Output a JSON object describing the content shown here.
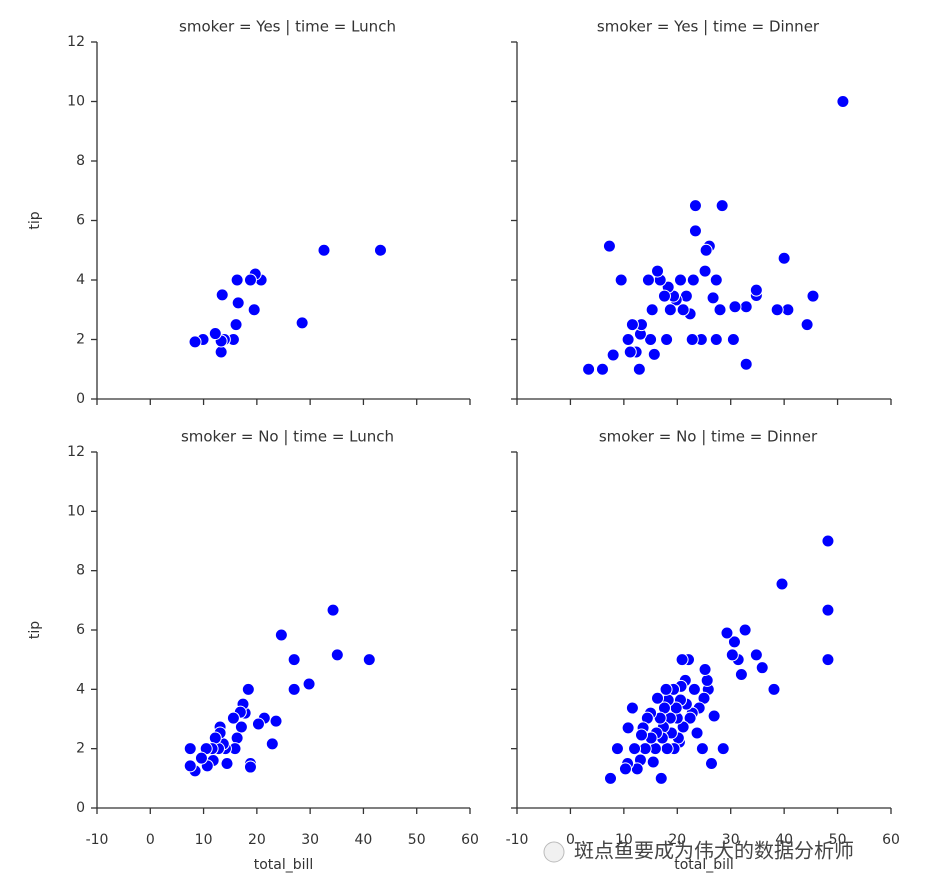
{
  "chart_data": [
    {
      "type": "scatter",
      "title": "smoker = Yes | time = Lunch",
      "ylabel": "tip",
      "color": "#0000ff",
      "edgecolor": "#ffffff",
      "xlim": [
        -10,
        60
      ],
      "ylim": [
        0,
        12
      ],
      "xticks": [
        -10,
        0,
        10,
        20,
        30,
        40,
        50,
        60
      ],
      "yticks": [
        0,
        2,
        4,
        6,
        8,
        10,
        12
      ],
      "x": [
        8.4,
        9.9,
        12.2,
        13.3,
        13.5,
        13.3,
        13.9,
        15.6,
        16.1,
        16.3,
        16.5,
        18.8,
        19.7,
        19.5,
        20.8,
        28.5,
        32.6,
        43.2
      ],
      "y": [
        1.92,
        2.0,
        2.2,
        1.95,
        3.5,
        1.58,
        2.0,
        2.0,
        2.5,
        4.0,
        3.23,
        4.0,
        4.2,
        3.0,
        4.0,
        2.56,
        5.0,
        5.0
      ]
    },
    {
      "type": "scatter",
      "title": "smoker = Yes | time = Dinner",
      "color": "#0000ff",
      "edgecolor": "#ffffff",
      "xlim": [
        -10,
        60
      ],
      "ylim": [
        0,
        12
      ],
      "xticks": [
        -10,
        0,
        10,
        20,
        30,
        40,
        50,
        60
      ],
      "yticks": [
        0,
        2,
        4,
        6,
        8,
        10,
        12
      ],
      "x": [
        3.4,
        6.0,
        7.3,
        8.0,
        9.5,
        10.8,
        11.6,
        11.2,
        12.3,
        12.9,
        13.3,
        13.1,
        14.6,
        15.0,
        15.7,
        15.3,
        16.3,
        16.8,
        17.6,
        18.0,
        18.3,
        18.7,
        19.3,
        19.8,
        20.6,
        21.1,
        21.7,
        22.4,
        22.8,
        23.0,
        23.4,
        23.4,
        24.5,
        25.2,
        25.4,
        26.0,
        26.7,
        27.3,
        27.3,
        28.4,
        28.0,
        30.5,
        30.8,
        32.9,
        32.9,
        34.8,
        34.8,
        38.7,
        40.0,
        40.7,
        44.3,
        45.4,
        51.0
      ],
      "y": [
        1.0,
        1.0,
        5.14,
        1.48,
        4.0,
        2.0,
        2.5,
        1.58,
        1.58,
        1.0,
        2.5,
        2.18,
        4.0,
        2.0,
        1.5,
        3.0,
        4.3,
        4.0,
        3.46,
        2.0,
        3.76,
        3.0,
        3.46,
        3.33,
        4.0,
        3.0,
        3.46,
        2.86,
        2.0,
        4.0,
        5.65,
        6.5,
        2.0,
        4.3,
        5.0,
        5.14,
        3.4,
        2.0,
        4.0,
        6.5,
        3.0,
        2.0,
        3.1,
        1.17,
        3.1,
        3.66,
        3.48,
        3.0,
        4.73,
        3.0,
        2.5,
        3.46,
        10.0
      ]
    },
    {
      "type": "scatter",
      "title": "smoker = No | time = Lunch",
      "xlabel": "total_bill",
      "ylabel": "tip",
      "color": "#0000ff",
      "edgecolor": "#ffffff",
      "xlim": [
        -10,
        60
      ],
      "ylim": [
        0,
        12
      ],
      "xticks": [
        -10,
        0,
        10,
        20,
        30,
        40,
        50,
        60
      ],
      "yticks": [
        0,
        2,
        4,
        6,
        8,
        10,
        12
      ],
      "x": [
        7.5,
        7.5,
        8.4,
        9.6,
        10.5,
        10.7,
        11.6,
        11.8,
        12.2,
        12.8,
        13.1,
        13.1,
        13.7,
        14.1,
        14.4,
        15.6,
        15.9,
        16.3,
        16.9,
        17.1,
        17.4,
        17.8,
        18.4,
        18.8,
        18.8,
        20.3,
        21.4,
        22.9,
        23.6,
        24.6,
        27.0,
        27.0,
        29.8,
        34.3,
        35.1,
        41.1
      ],
      "y": [
        2.0,
        1.42,
        1.25,
        1.68,
        2.0,
        1.42,
        2.0,
        1.6,
        2.36,
        2.0,
        2.53,
        2.73,
        2.16,
        2.0,
        1.5,
        3.03,
        2.0,
        2.36,
        3.23,
        2.73,
        3.5,
        3.2,
        4.0,
        1.38,
        1.5,
        2.83,
        3.03,
        2.16,
        2.93,
        5.83,
        5.0,
        4.0,
        4.18,
        6.67,
        5.16,
        5.0
      ]
    },
    {
      "type": "scatter",
      "title": "smoker = No | time = Dinner",
      "xlabel": "total_bill",
      "color": "#0000ff",
      "edgecolor": "#ffffff",
      "xlim": [
        -10,
        60
      ],
      "ylim": [
        0,
        12
      ],
      "xticks": [
        -10,
        0,
        10,
        20,
        30,
        40,
        50,
        60
      ],
      "yticks": [
        0,
        2,
        4,
        6,
        8,
        10,
        12
      ],
      "x": [
        7.5,
        8.8,
        10.3,
        10.7,
        10.8,
        11.6,
        12.0,
        12.5,
        13.1,
        13.3,
        13.6,
        14.0,
        14.4,
        15.0,
        15.1,
        15.5,
        15.9,
        16.1,
        16.3,
        16.8,
        17.0,
        17.2,
        17.4,
        17.6,
        17.9,
        18.1,
        18.3,
        18.7,
        18.9,
        19.3,
        19.4,
        19.8,
        20.0,
        20.2,
        20.4,
        20.6,
        20.7,
        20.9,
        21.1,
        21.5,
        21.7,
        22.1,
        22.4,
        22.8,
        23.2,
        23.7,
        24.1,
        24.7,
        25.0,
        25.2,
        25.6,
        25.8,
        26.4,
        26.9,
        28.6,
        29.3,
        30.3,
        30.7,
        31.4,
        32.0,
        32.7,
        34.8,
        35.9,
        38.1,
        39.6,
        48.2,
        48.2,
        48.2
      ],
      "y": [
        1.0,
        2.0,
        1.32,
        1.5,
        2.7,
        3.37,
        2.0,
        1.32,
        1.62,
        2.46,
        2.7,
        2.0,
        3.03,
        3.2,
        2.36,
        1.55,
        2.0,
        2.53,
        3.7,
        3.03,
        1.0,
        2.36,
        2.73,
        3.37,
        4.0,
        2.0,
        3.64,
        3.03,
        2.53,
        4.0,
        2.0,
        3.37,
        3.03,
        2.36,
        2.22,
        3.64,
        4.1,
        5.0,
        2.73,
        4.3,
        3.5,
        5.0,
        3.03,
        3.2,
        4.0,
        2.53,
        3.37,
        2.0,
        3.7,
        4.67,
        4.3,
        4.0,
        1.5,
        3.1,
        2.0,
        5.9,
        5.16,
        5.6,
        5.0,
        4.5,
        6.0,
        5.16,
        4.73,
        4.0,
        7.55,
        9.0,
        6.67,
        5.0
      ]
    }
  ],
  "watermark": "斑点鱼要成为伟大的数据分析师"
}
